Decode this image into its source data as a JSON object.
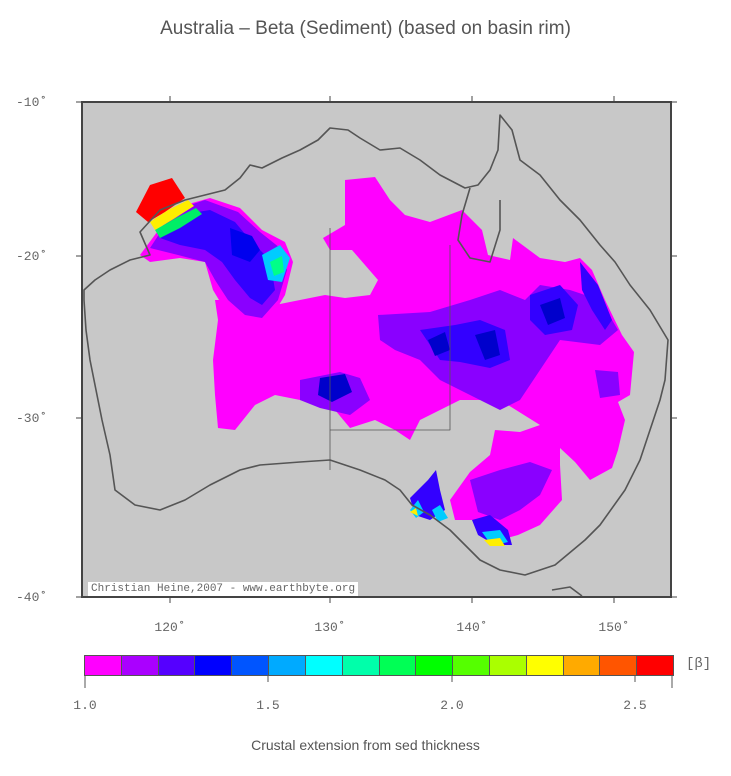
{
  "title": "Australia – Beta (Sediment) (based on basin rim)",
  "y_axis": {
    "labels": [
      "-10˚",
      "-20˚",
      "-30˚",
      "-40˚"
    ]
  },
  "x_axis": {
    "labels": [
      "120˚",
      "130˚",
      "140˚",
      "150˚"
    ]
  },
  "credit": "Christian Heine,2007 - www.earthbyte.org",
  "colorbar": {
    "unit": "[β]",
    "ticks": [
      "1.0",
      "1.5",
      "2.0",
      "2.5"
    ],
    "colors": [
      "#ff00ff",
      "#aa00ff",
      "#5500ff",
      "#0000ff",
      "#0055ff",
      "#00aaff",
      "#00ffff",
      "#00ffaa",
      "#00ff55",
      "#00ff00",
      "#55ff00",
      "#aaff00",
      "#ffff00",
      "#ffaa00",
      "#ff5500",
      "#ff0000"
    ],
    "range": [
      1.0,
      2.6
    ]
  },
  "x_title": "Crustal extension from sed thickness",
  "colors": {
    "ocean": "#c8c8c8",
    "coast": "#555555",
    "frame": "#444444"
  }
}
